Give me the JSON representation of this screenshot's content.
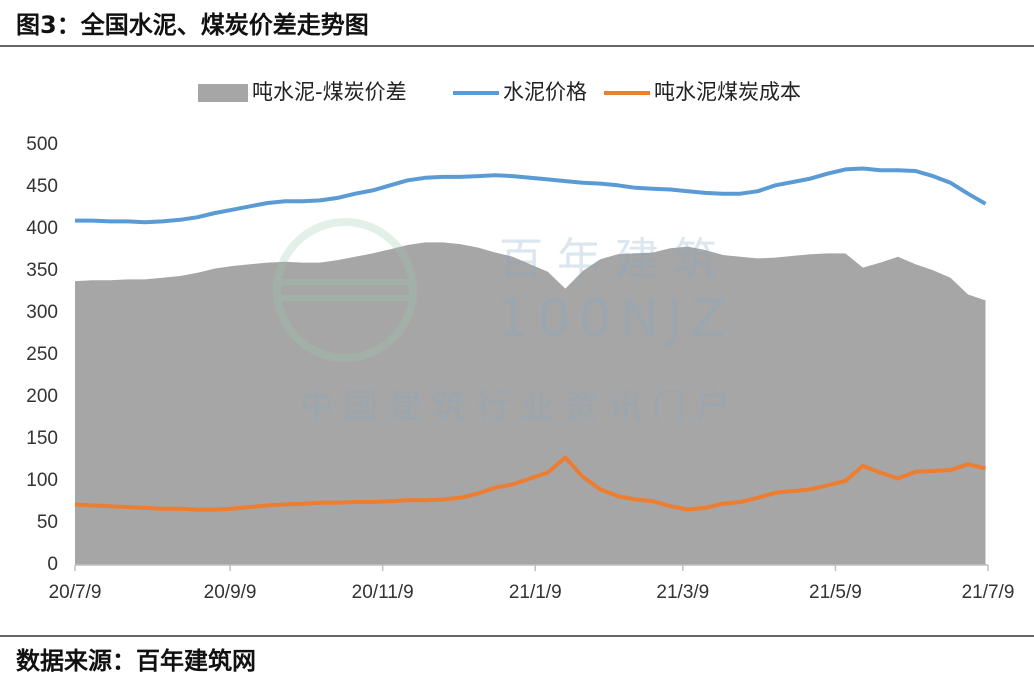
{
  "chart_data": {
    "type": "line",
    "title": "图3：全国水泥、煤炭价差走势图",
    "source": "数据来源：百年建筑网",
    "watermark": [
      "百年建筑",
      "100NJZ",
      "中国建筑行业资讯门户"
    ],
    "x": [
      "2020-07-09",
      "2020-07-16",
      "2020-07-23",
      "2020-07-30",
      "2020-08-06",
      "2020-08-13",
      "2020-08-20",
      "2020-08-27",
      "2020-09-03",
      "2020-09-10",
      "2020-09-17",
      "2020-09-24",
      "2020-10-01",
      "2020-10-08",
      "2020-10-15",
      "2020-10-22",
      "2020-10-29",
      "2020-11-05",
      "2020-11-12",
      "2020-11-19",
      "2020-11-26",
      "2020-12-03",
      "2020-12-10",
      "2020-12-17",
      "2020-12-24",
      "2020-12-31",
      "2021-01-07",
      "2021-01-14",
      "2021-01-21",
      "2021-01-28",
      "2021-02-04",
      "2021-02-11",
      "2021-02-18",
      "2021-02-25",
      "2021-03-04",
      "2021-03-11",
      "2021-03-18",
      "2021-03-25",
      "2021-04-01",
      "2021-04-08",
      "2021-04-15",
      "2021-04-22",
      "2021-04-29",
      "2021-05-06",
      "2021-05-13",
      "2021-05-20",
      "2021-05-27",
      "2021-06-03",
      "2021-06-10",
      "2021-06-17",
      "2021-06-24",
      "2021-07-01",
      "2021-07-08"
    ],
    "series": [
      {
        "name": "吨水泥-煤炭价差",
        "color": "#a6a6a6",
        "fill": true,
        "values": [
          338,
          339,
          339,
          340,
          340,
          342,
          344,
          348,
          353,
          356,
          358,
          360,
          361,
          360,
          360,
          363,
          367,
          371,
          376,
          381,
          384,
          384,
          382,
          378,
          372,
          367,
          358,
          349,
          329,
          350,
          364,
          370,
          371,
          372,
          377,
          379,
          375,
          369,
          367,
          365,
          366,
          368,
          370,
          371,
          371,
          354,
          360,
          367,
          358,
          351,
          342,
          322,
          315
        ]
      },
      {
        "name": "水泥价格",
        "color": "#5b9bd5",
        "fill": false,
        "values": [
          410,
          410,
          409,
          409,
          408,
          409,
          411,
          414,
          419,
          423,
          427,
          431,
          433,
          433,
          434,
          437,
          442,
          446,
          452,
          458,
          461,
          462,
          462,
          463,
          464,
          463,
          461,
          459,
          457,
          455,
          454,
          452,
          449,
          448,
          447,
          445,
          443,
          442,
          442,
          445,
          452,
          456,
          460,
          466,
          471,
          472,
          470,
          470,
          469,
          463,
          455,
          442,
          430
        ]
      },
      {
        "name": "吨水泥煤炭成本",
        "color": "#ed7d31",
        "fill": false,
        "values": [
          72,
          71,
          70,
          69,
          68,
          67,
          67,
          66,
          66,
          67,
          69,
          71,
          72,
          73,
          74,
          74,
          75,
          75,
          76,
          77,
          77,
          78,
          80,
          85,
          92,
          96,
          103,
          110,
          128,
          105,
          90,
          82,
          78,
          76,
          70,
          66,
          68,
          73,
          75,
          80,
          86,
          88,
          90,
          95,
          100,
          118,
          110,
          103,
          111,
          112,
          113,
          120,
          115
        ]
      }
    ],
    "xlim": [
      "2020-07-09",
      "2021-07-09"
    ],
    "xticks": [
      {
        "value": "2020-07-09",
        "label": "20/7/9"
      },
      {
        "value": "2020-09-09",
        "label": "20/9/9"
      },
      {
        "value": "2020-11-09",
        "label": "20/11/9"
      },
      {
        "value": "2021-01-09",
        "label": "21/1/9"
      },
      {
        "value": "2021-03-09",
        "label": "21/3/9"
      },
      {
        "value": "2021-05-09",
        "label": "21/5/9"
      },
      {
        "value": "2021-07-09",
        "label": "21/7/9"
      }
    ],
    "ylim": [
      0,
      500
    ],
    "yticks": [
      0,
      50,
      100,
      150,
      200,
      250,
      300,
      350,
      400,
      450,
      500
    ],
    "grid": false
  }
}
